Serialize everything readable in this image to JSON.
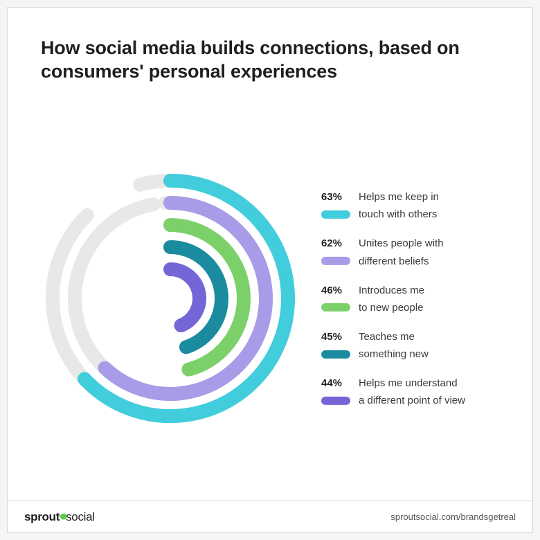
{
  "title": "How social media builds connections, based on consumers' personal experiences",
  "chart": {
    "type": "radial-bar",
    "background_color": "#ffffff",
    "track_color": "#e8e8e8",
    "stroke_width": 20,
    "ring_gap": 32,
    "outer_radius": 170,
    "svg_size": 410,
    "svg_left": 30,
    "start_angle_deg": -90,
    "max_percent": 100,
    "linecap": "round",
    "series": [
      {
        "percent": 63,
        "label_line1": "Helps me keep in",
        "label_line2": "touch with others",
        "color": "#42cddc",
        "track_start_deg": -105,
        "track_end_deg": 225
      },
      {
        "percent": 62,
        "label_line1": "Unites people with",
        "label_line2": "different beliefs",
        "color": "#a99be8",
        "track_start_deg": -93,
        "track_end_deg": 260
      },
      {
        "percent": 46,
        "label_line1": "Introduces me",
        "label_line2": "to new people",
        "color": "#7cd06a",
        "track_start_deg": -90,
        "track_end_deg": 270
      },
      {
        "percent": 45,
        "label_line1": "Teaches me",
        "label_line2": "something new",
        "color": "#1b8ca0",
        "track_start_deg": -90,
        "track_end_deg": 270
      },
      {
        "percent": 44,
        "label_line1": "Helps me understand",
        "label_line2": "a different point of view",
        "color": "#7566d8",
        "track_start_deg": -90,
        "track_end_deg": 270
      }
    ]
  },
  "footer": {
    "brand_left": "sprout",
    "brand_right": "social",
    "brand_leaf_color": "#5ecb4b",
    "link": "sproutsocial.com/brandsgetreal"
  },
  "colors": {
    "card_border": "#d8d8d8",
    "text_primary": "#1f1f1f",
    "text_body": "#3a3a3a",
    "page_background": "#f5f5f5"
  }
}
